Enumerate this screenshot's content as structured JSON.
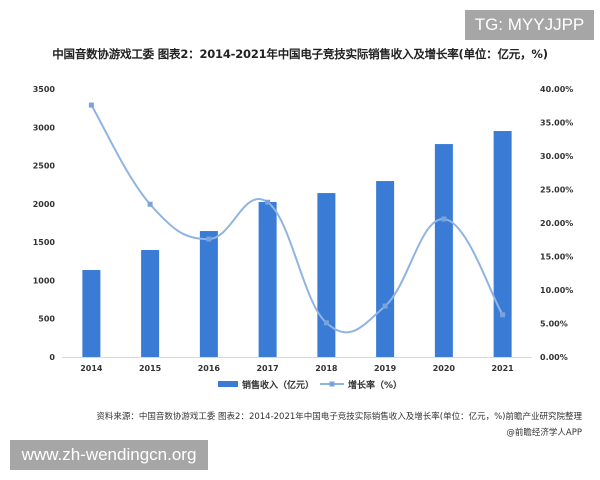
{
  "badges": {
    "top_right": "TG: MYYJJPP",
    "bottom_left": "www.zh-wendingcn.org"
  },
  "title": "中国音数协游戏工委 图表2：2014-2021年中国电子竞技实际销售收入及增长率(单位：亿元，%)",
  "footer": {
    "source": "资料来源：中国音数协游戏工委 图表2：2014-2021年中国电子竞技实际销售收入及增长率(单位：亿元，%)前瞻产业研究院整理",
    "credit": "@前瞻经济学人APP"
  },
  "colors": {
    "bar": "#3a7bd5",
    "line": "#8fb4e3",
    "line_marker": "#7aa3dc",
    "axis": "#d9d9d9",
    "badge_bg": "#a6a6a6"
  },
  "chart_data": {
    "type": "bar",
    "title": "2014-2021年中国电子竞技实际销售收入及增长率(单位：亿元，%)",
    "categories": [
      "2014",
      "2015",
      "2016",
      "2017",
      "2018",
      "2019",
      "2020",
      "2021"
    ],
    "series": [
      {
        "name": "销售收入（亿元）",
        "type": "bar",
        "axis": "left",
        "values": [
          1136,
          1397,
          1645,
          2024,
          2141,
          2298,
          2781,
          2951
        ]
      },
      {
        "name": "增长率（%）",
        "type": "line",
        "axis": "right",
        "values": [
          37.6,
          22.8,
          17.6,
          23.1,
          5.1,
          7.6,
          20.6,
          6.3
        ]
      }
    ],
    "left_axis": {
      "ylim": [
        0,
        3500
      ],
      "ticks": [
        "0",
        "500",
        "1000",
        "1500",
        "2000",
        "2500",
        "3000",
        "3500"
      ]
    },
    "right_axis": {
      "ylim": [
        0,
        40
      ],
      "ticks": [
        "0.00%",
        "5.00%",
        "10.00%",
        "15.00%",
        "20.00%",
        "25.00%",
        "30.00%",
        "35.00%",
        "40.00%"
      ]
    },
    "legend": [
      "销售收入（亿元）",
      "增长率（%）"
    ],
    "legend_position": "bottom",
    "grid": false,
    "xlabel": "",
    "ylabel": ""
  }
}
